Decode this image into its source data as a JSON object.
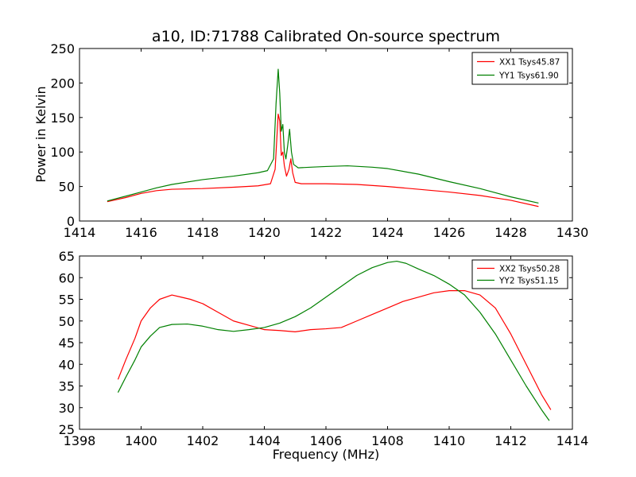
{
  "chart_data": [
    {
      "type": "line",
      "title": "a10, ID:71788 Calibrated On-source spectrum",
      "xlabel": "",
      "ylabel": "Power in Kelvin",
      "xlim": [
        1414,
        1430
      ],
      "ylim": [
        0,
        250
      ],
      "xticks": [
        1414,
        1416,
        1418,
        1420,
        1422,
        1424,
        1426,
        1428,
        1430
      ],
      "yticks": [
        0,
        50,
        100,
        150,
        200,
        250
      ],
      "grid": false,
      "legend": "top-right",
      "series": [
        {
          "name": "XX1 Tsys45.87",
          "color": "#ff0000",
          "x": [
            1414.9,
            1415.5,
            1416.0,
            1416.5,
            1417.0,
            1418.0,
            1419.0,
            1419.8,
            1420.2,
            1420.35,
            1420.45,
            1420.5,
            1420.55,
            1420.6,
            1420.65,
            1420.72,
            1420.8,
            1420.86,
            1420.92,
            1421.0,
            1421.2,
            1422.0,
            1423.0,
            1424.0,
            1425.0,
            1426.0,
            1427.0,
            1428.0,
            1428.9
          ],
          "y": [
            28,
            34,
            40,
            44,
            46,
            47,
            49,
            51,
            54,
            75,
            155,
            145,
            95,
            100,
            80,
            65,
            75,
            90,
            70,
            56,
            54,
            54,
            53,
            50,
            46,
            42,
            37,
            30,
            21
          ]
        },
        {
          "name": "YY1 Tsys61.90",
          "color": "#008000",
          "x": [
            1414.9,
            1415.5,
            1416.0,
            1416.5,
            1417.0,
            1418.0,
            1419.0,
            1419.8,
            1420.1,
            1420.3,
            1420.38,
            1420.45,
            1420.5,
            1420.55,
            1420.6,
            1420.65,
            1420.7,
            1420.76,
            1420.82,
            1420.88,
            1420.95,
            1421.1,
            1421.5,
            1422.0,
            1422.7,
            1423.5,
            1424.0,
            1425.0,
            1426.0,
            1427.0,
            1428.0,
            1428.9
          ],
          "y": [
            29,
            36,
            42,
            48,
            53,
            60,
            65,
            70,
            73,
            90,
            170,
            220,
            185,
            130,
            140,
            100,
            90,
            110,
            133,
            100,
            82,
            77,
            78,
            79,
            80,
            78,
            76,
            68,
            57,
            47,
            35,
            26
          ]
        }
      ]
    },
    {
      "type": "line",
      "title": "",
      "xlabel": "Frequency (MHz)",
      "ylabel": "",
      "xlim": [
        1398,
        1414
      ],
      "ylim": [
        25,
        65
      ],
      "xticks": [
        1398,
        1400,
        1402,
        1404,
        1406,
        1408,
        1410,
        1412,
        1414
      ],
      "yticks": [
        25,
        30,
        35,
        40,
        45,
        50,
        55,
        60,
        65
      ],
      "grid": false,
      "legend": "top-right",
      "series": [
        {
          "name": "XX2 Tsys50.28",
          "color": "#ff0000",
          "x": [
            1399.25,
            1399.5,
            1399.8,
            1400.0,
            1400.3,
            1400.6,
            1401.0,
            1401.3,
            1401.6,
            1402.0,
            1402.5,
            1403.0,
            1403.5,
            1404.0,
            1404.5,
            1405.0,
            1405.5,
            1406.0,
            1406.5,
            1407.0,
            1407.5,
            1408.0,
            1408.5,
            1409.0,
            1409.5,
            1410.0,
            1410.5,
            1411.0,
            1411.5,
            1412.0,
            1412.5,
            1413.0,
            1413.3
          ],
          "y": [
            36.5,
            41,
            46,
            50,
            53,
            55,
            56,
            55.5,
            55,
            54,
            52,
            50,
            49,
            48,
            47.8,
            47.5,
            48,
            48.2,
            48.5,
            50,
            51.5,
            53,
            54.5,
            55.5,
            56.5,
            57,
            57,
            56,
            53,
            47,
            40,
            33,
            29.5
          ]
        },
        {
          "name": "YY2 Tsys51.15",
          "color": "#008000",
          "x": [
            1399.25,
            1399.5,
            1399.8,
            1400.0,
            1400.3,
            1400.6,
            1401.0,
            1401.5,
            1402.0,
            1402.5,
            1403.0,
            1403.5,
            1404.0,
            1404.5,
            1405.0,
            1405.5,
            1406.0,
            1406.5,
            1407.0,
            1407.5,
            1408.0,
            1408.3,
            1408.6,
            1409.0,
            1409.5,
            1410.0,
            1410.5,
            1411.0,
            1411.5,
            1412.0,
            1412.5,
            1413.0,
            1413.25
          ],
          "y": [
            33.5,
            37,
            41,
            44,
            46.5,
            48.5,
            49.2,
            49.3,
            48.8,
            48,
            47.6,
            48,
            48.5,
            49.5,
            51,
            53,
            55.5,
            58,
            60.5,
            62.3,
            63.5,
            63.8,
            63.3,
            62,
            60.5,
            58.5,
            56,
            52,
            47,
            41,
            35,
            29.5,
            27
          ]
        }
      ]
    }
  ]
}
